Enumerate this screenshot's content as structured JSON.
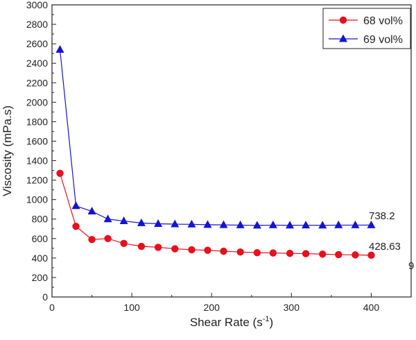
{
  "chart_data": {
    "type": "line",
    "xlabel": "Shear Rate (s",
    "xlabel_sup": "-1",
    "xlabel_end": ")",
    "ylabel": "Viscosity (mPa.s)",
    "xlim": [
      0,
      450
    ],
    "ylim": [
      0,
      3000
    ],
    "x_ticks": [
      0,
      100,
      200,
      300,
      400
    ],
    "y_ticks": [
      0,
      200,
      400,
      600,
      800,
      1000,
      1200,
      1400,
      1600,
      1800,
      2000,
      2200,
      2400,
      2600,
      2800,
      3000
    ],
    "grid": false,
    "legend_position": "top-right",
    "x": [
      10,
      30,
      50,
      70,
      90,
      112,
      133,
      154,
      175,
      195,
      215,
      236,
      257,
      277,
      298,
      318,
      339,
      359,
      380,
      400
    ],
    "series": [
      {
        "name": "68 vol%",
        "color": "#e8101c",
        "marker": "circle",
        "values": [
          1270,
          725,
          590,
          600,
          550,
          520,
          510,
          495,
          485,
          480,
          470,
          462,
          455,
          452,
          448,
          445,
          440,
          435,
          432,
          428.63
        ]
      },
      {
        "name": "69 vol%",
        "color": "#1414d2",
        "marker": "triangle",
        "values": [
          2540,
          935,
          880,
          800,
          780,
          760,
          752,
          748,
          746,
          742,
          740,
          738,
          735,
          738,
          736,
          737,
          736,
          738,
          738,
          738.2
        ]
      }
    ],
    "annotations": [
      {
        "text": "738.2",
        "x": 400,
        "y": 738.2
      },
      {
        "text": "428.63",
        "x": 400,
        "y": 428.63
      },
      {
        "text": "9",
        "x": 450,
        "y": 300
      }
    ]
  }
}
